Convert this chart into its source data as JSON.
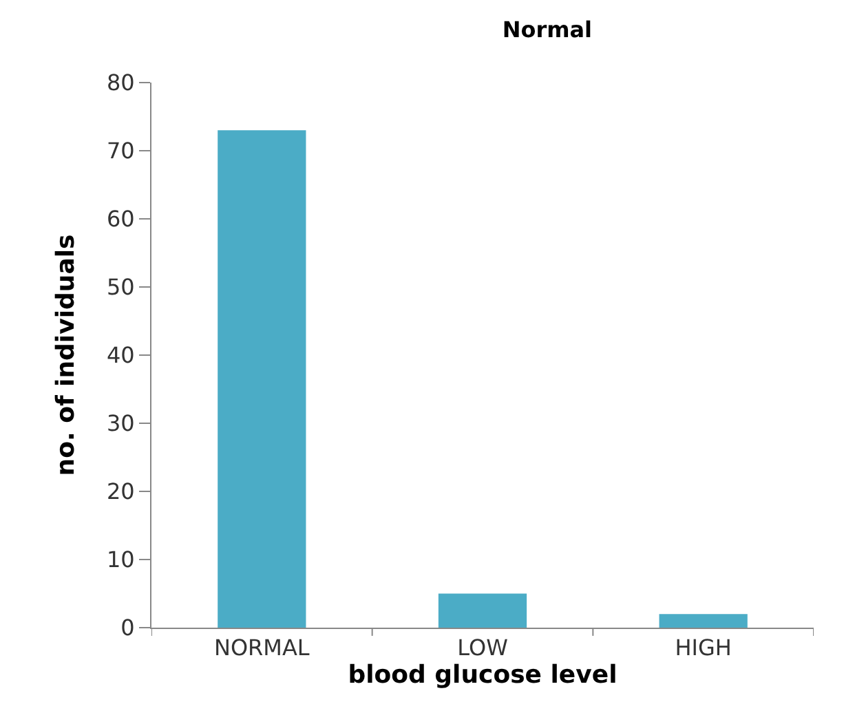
{
  "chart_data": {
    "type": "bar",
    "title": "Normal",
    "xlabel": "blood glucose level",
    "ylabel": "no. of individuals",
    "categories": [
      "NORMAL",
      "LOW",
      "HIGH"
    ],
    "values": [
      73,
      5,
      2
    ],
    "color": "#4bacc6",
    "ylim": [
      0,
      80
    ],
    "yticks": [
      0,
      10,
      20,
      30,
      40,
      50,
      60,
      70,
      80
    ],
    "grid": false
  }
}
